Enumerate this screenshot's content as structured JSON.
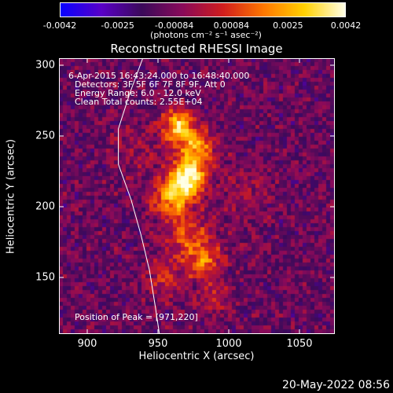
{
  "colorbar": {
    "ticks": [
      "-0.0042",
      "-0.0025",
      "-0.00084",
      "0.00084",
      "0.0025",
      "0.0042"
    ],
    "tick_values": [
      -0.0042,
      -0.0025,
      -0.00084,
      0.00084,
      0.0025,
      0.0042
    ],
    "unit_label": "(photons cm⁻² s⁻¹ asec⁻²)",
    "colors": [
      "#0a00ff",
      "#5a00c8",
      "#3c0a5a",
      "#8a0a5a",
      "#d21e1e",
      "#ff7800",
      "#ffd200",
      "#ffffe6"
    ]
  },
  "chart_data": {
    "type": "heatmap",
    "title": "Reconstructed RHESSI Image",
    "xlabel": "Heliocentric X (arcsec)",
    "ylabel": "Heliocentric Y (arcsec)",
    "xlim": [
      880,
      1075
    ],
    "ylim": [
      110,
      305
    ],
    "xticks": [
      900,
      950,
      1000,
      1050
    ],
    "yticks": [
      150,
      200,
      250,
      300
    ],
    "info_lines": [
      "6-Apr-2015 16:43:24.000 to 16:48:40.000",
      "Detectors: 3F 5F 6F 7F 8F 9F, Att 0",
      "Energy Range: 6.0 - 12.0 keV",
      "Clean    Total counts: 2.55E+04"
    ],
    "peak_label": "Position of Peak = [971,220]",
    "peak": [
      971,
      220
    ],
    "sources": [
      {
        "x": 971,
        "y": 221,
        "sigma": 9,
        "amp": 1.0
      },
      {
        "x": 964,
        "y": 258,
        "sigma": 8,
        "amp": 0.75
      },
      {
        "x": 977,
        "y": 242,
        "sigma": 9,
        "amp": 0.65
      },
      {
        "x": 960,
        "y": 205,
        "sigma": 10,
        "amp": 0.6
      },
      {
        "x": 972,
        "y": 178,
        "sigma": 11,
        "amp": 0.45
      },
      {
        "x": 984,
        "y": 160,
        "sigma": 9,
        "amp": 0.45
      },
      {
        "x": 955,
        "y": 150,
        "sigma": 10,
        "amp": 0.3
      },
      {
        "x": 990,
        "y": 135,
        "sigma": 8,
        "amp": 0.3
      },
      {
        "x": 935,
        "y": 240,
        "sigma": 14,
        "amp": 0.15
      },
      {
        "x": 1010,
        "y": 210,
        "sigma": 14,
        "amp": 0.15
      }
    ],
    "limb_curve": [
      [
        940,
        307
      ],
      [
        930,
        280
      ],
      [
        922,
        255
      ],
      [
        922,
        230
      ],
      [
        931,
        205
      ],
      [
        938,
        180
      ],
      [
        944,
        155
      ],
      [
        948,
        130
      ],
      [
        951,
        110
      ]
    ]
  },
  "footer": {
    "timestamp": "20-May-2022 08:56"
  }
}
